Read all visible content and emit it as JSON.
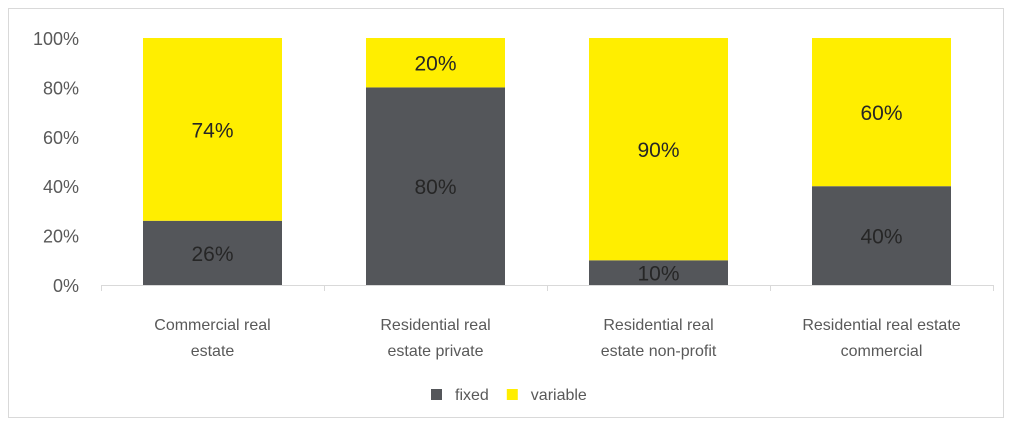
{
  "chart_data": {
    "type": "bar",
    "stacked": true,
    "categories": [
      [
        "Commercial real",
        "estate"
      ],
      [
        "Residential real",
        "estate private"
      ],
      [
        "Residential real",
        "estate non-profit"
      ],
      [
        "Residential real estate",
        "commercial"
      ]
    ],
    "series": [
      {
        "name": "fixed",
        "values": [
          26,
          80,
          10,
          40
        ],
        "labels": [
          "26%",
          "80%",
          "10%",
          "40%"
        ],
        "color": "#54565a"
      },
      {
        "name": "variable",
        "values": [
          74,
          20,
          90,
          60
        ],
        "labels": [
          "74%",
          "20%",
          "90%",
          "60%"
        ],
        "color": "#ffee00"
      }
    ],
    "yticks": [
      "0%",
      "20%",
      "40%",
      "60%",
      "80%",
      "100%"
    ],
    "ylim": [
      0,
      100
    ],
    "grid": false,
    "legend_position": "bottom"
  }
}
